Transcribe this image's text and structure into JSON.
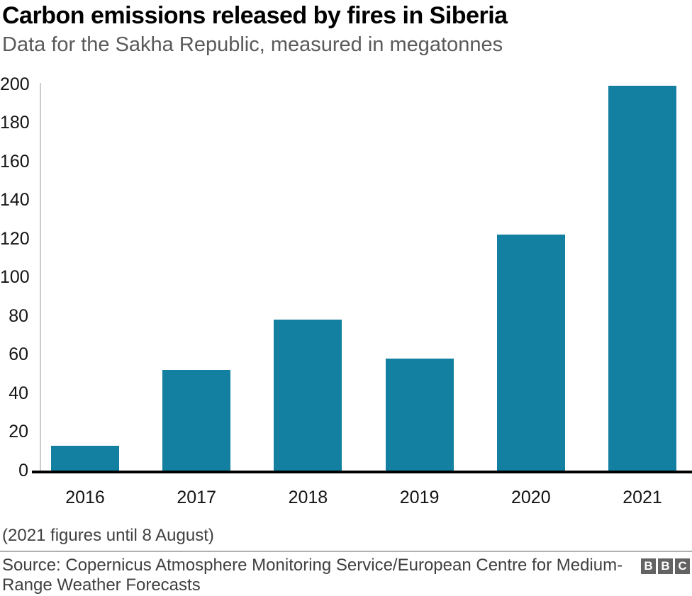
{
  "header": {
    "title": "Carbon emissions released by fires in Siberia",
    "subtitle": "Data for the Sakha Republic, measured in megatonnes"
  },
  "chart_data": {
    "type": "bar",
    "title": "Carbon emissions released by fires in Siberia",
    "subtitle": "Data for the Sakha Republic, measured in megatonnes",
    "categories": [
      "2016",
      "2017",
      "2018",
      "2019",
      "2020",
      "2021"
    ],
    "values": [
      13,
      52,
      78,
      58,
      122,
      199
    ],
    "xlabel": "",
    "ylabel": "megatonnes",
    "ylim": [
      0,
      200
    ],
    "yticks": [
      0,
      20,
      40,
      60,
      80,
      100,
      120,
      140,
      160,
      180,
      200
    ],
    "grid": "off",
    "legend": "none",
    "bar_color": "#1380A1",
    "axis_line_color": "#cccccc",
    "baseline_color": "#000000"
  },
  "footnote": {
    "text": "(2021 figures until 8 August)"
  },
  "source": {
    "text": "Source: Copernicus Atmosphere Monitoring Service/European Centre for Medium-Range Weather Forecasts"
  },
  "branding": {
    "logo_blocks": [
      "B",
      "B",
      "C"
    ],
    "logo_color": "#636363"
  }
}
